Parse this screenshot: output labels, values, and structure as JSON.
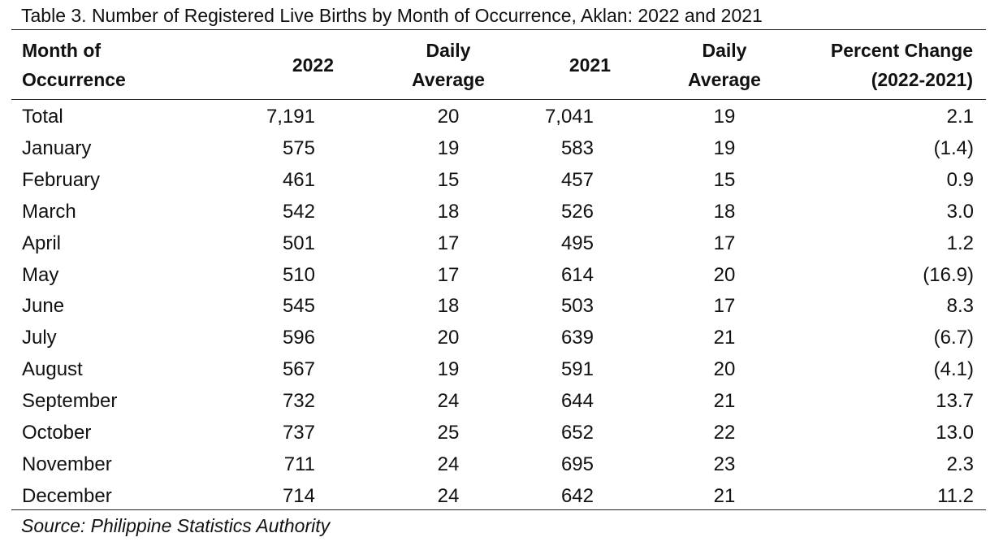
{
  "title": "Table 3.  Number of Registered Live Births by Month of Occurrence, Aklan: 2022 and 2021",
  "headers": {
    "month": [
      "Month of",
      "Occurrence"
    ],
    "y2022": "2022",
    "avg2022": [
      "Daily",
      "Average"
    ],
    "y2021": "2021",
    "avg2021": [
      "Daily",
      "Average"
    ],
    "pct": [
      "Percent Change",
      "(2022-2021)"
    ]
  },
  "rows": [
    {
      "month": "Total",
      "v2022": "7,191",
      "avg2022": "20",
      "v2021": "7,041",
      "avg2021": "19",
      "pct": "2.1"
    },
    {
      "month": "January",
      "v2022": "575",
      "avg2022": "19",
      "v2021": "583",
      "avg2021": "19",
      "pct": "(1.4)"
    },
    {
      "month": "February",
      "v2022": "461",
      "avg2022": "15",
      "v2021": "457",
      "avg2021": "15",
      "pct": "0.9"
    },
    {
      "month": "March",
      "v2022": "542",
      "avg2022": "18",
      "v2021": "526",
      "avg2021": "18",
      "pct": "3.0"
    },
    {
      "month": "April",
      "v2022": "501",
      "avg2022": "17",
      "v2021": "495",
      "avg2021": "17",
      "pct": "1.2"
    },
    {
      "month": "May",
      "v2022": "510",
      "avg2022": "17",
      "v2021": "614",
      "avg2021": "20",
      "pct": "(16.9)"
    },
    {
      "month": "June",
      "v2022": "545",
      "avg2022": "18",
      "v2021": "503",
      "avg2021": "17",
      "pct": "8.3"
    },
    {
      "month": "July",
      "v2022": "596",
      "avg2022": "20",
      "v2021": "639",
      "avg2021": "21",
      "pct": "(6.7)"
    },
    {
      "month": "August",
      "v2022": "567",
      "avg2022": "19",
      "v2021": "591",
      "avg2021": "20",
      "pct": "(4.1)"
    },
    {
      "month": "September",
      "v2022": "732",
      "avg2022": "24",
      "v2021": "644",
      "avg2021": "21",
      "pct": "13.7"
    },
    {
      "month": "October",
      "v2022": "737",
      "avg2022": "25",
      "v2021": "652",
      "avg2021": "22",
      "pct": "13.0"
    },
    {
      "month": "November",
      "v2022": "711",
      "avg2022": "24",
      "v2021": "695",
      "avg2021": "23",
      "pct": "2.3"
    },
    {
      "month": "December",
      "v2022": "714",
      "avg2022": "24",
      "v2021": "642",
      "avg2021": "21",
      "pct": "11.2"
    }
  ],
  "source": "Source: Philippine Statistics Authority"
}
